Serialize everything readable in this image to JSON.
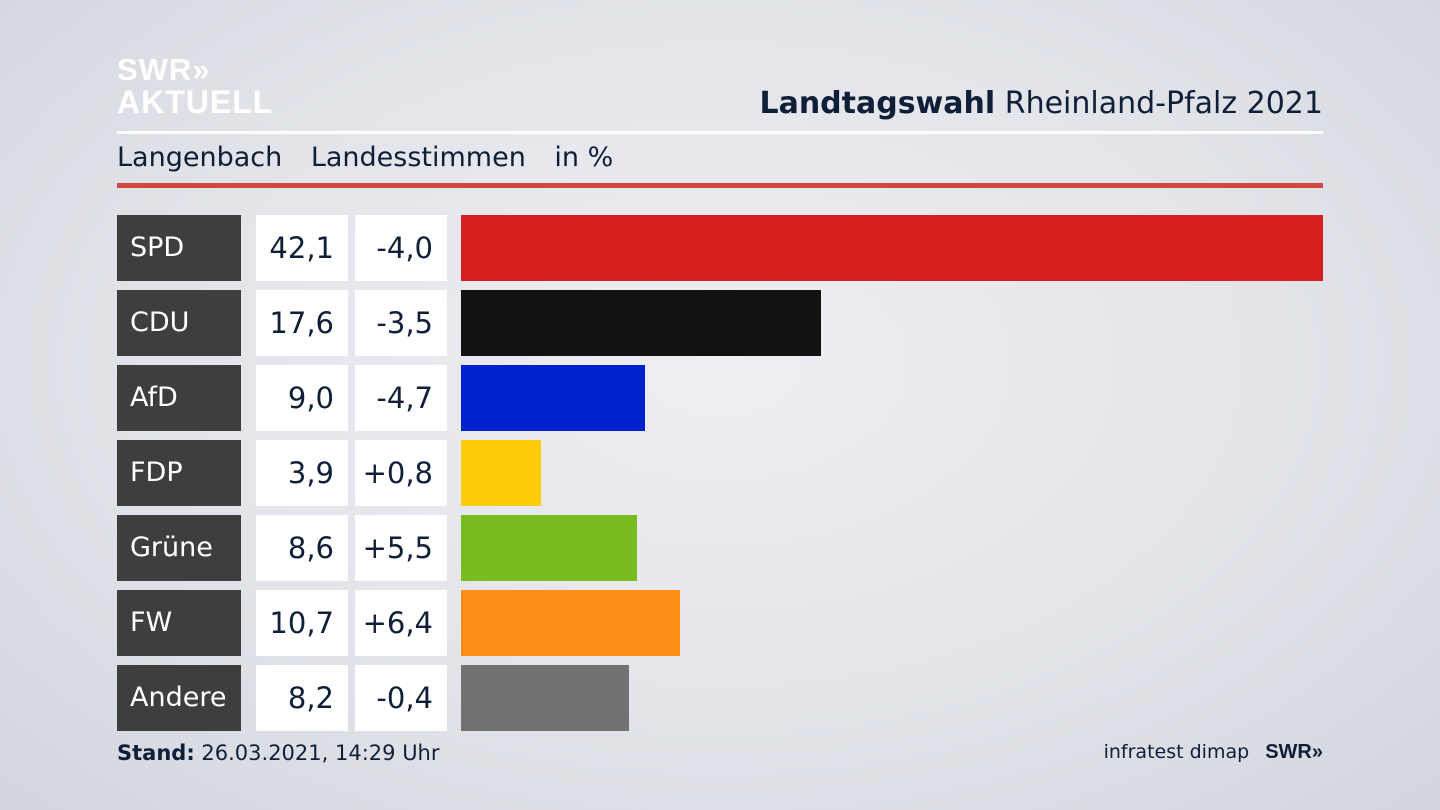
{
  "header": {
    "logo_line1": "SWR»",
    "logo_line2": "AKTUELL",
    "title_bold": "Landtagswahl",
    "title_rest": "Rheinland-Pfalz 2021"
  },
  "subtitle": {
    "place": "Langenbach",
    "measure": "Landesstimmen",
    "unit": "in %"
  },
  "chart_data": {
    "type": "bar",
    "orientation": "horizontal",
    "categories": [
      "SPD",
      "CDU",
      "AfD",
      "FDP",
      "Grüne",
      "FW",
      "Andere"
    ],
    "values": [
      42.1,
      17.6,
      9.0,
      3.9,
      8.6,
      10.7,
      8.2
    ],
    "value_labels": [
      "42,1",
      "17,6",
      "9,0",
      "3,9",
      "8,6",
      "10,7",
      "8,2"
    ],
    "changes": [
      -4.0,
      -3.5,
      -4.7,
      0.8,
      5.5,
      6.4,
      -0.4
    ],
    "change_labels": [
      "-4,0",
      "-3,5",
      "-4,7",
      "+0,8",
      "+5,5",
      "+6,4",
      "-0,4"
    ],
    "colors": [
      "#d71f1f",
      "#121212",
      "#0022cc",
      "#ffcc0a",
      "#78bc1f",
      "#ff8e17",
      "#727272"
    ],
    "xlim": [
      0,
      42.1
    ]
  },
  "footer": {
    "stand_label": "Stand:",
    "stand_value": "26.03.2021, 14:29 Uhr",
    "source": "infratest dimap",
    "brand": "SWR»"
  }
}
